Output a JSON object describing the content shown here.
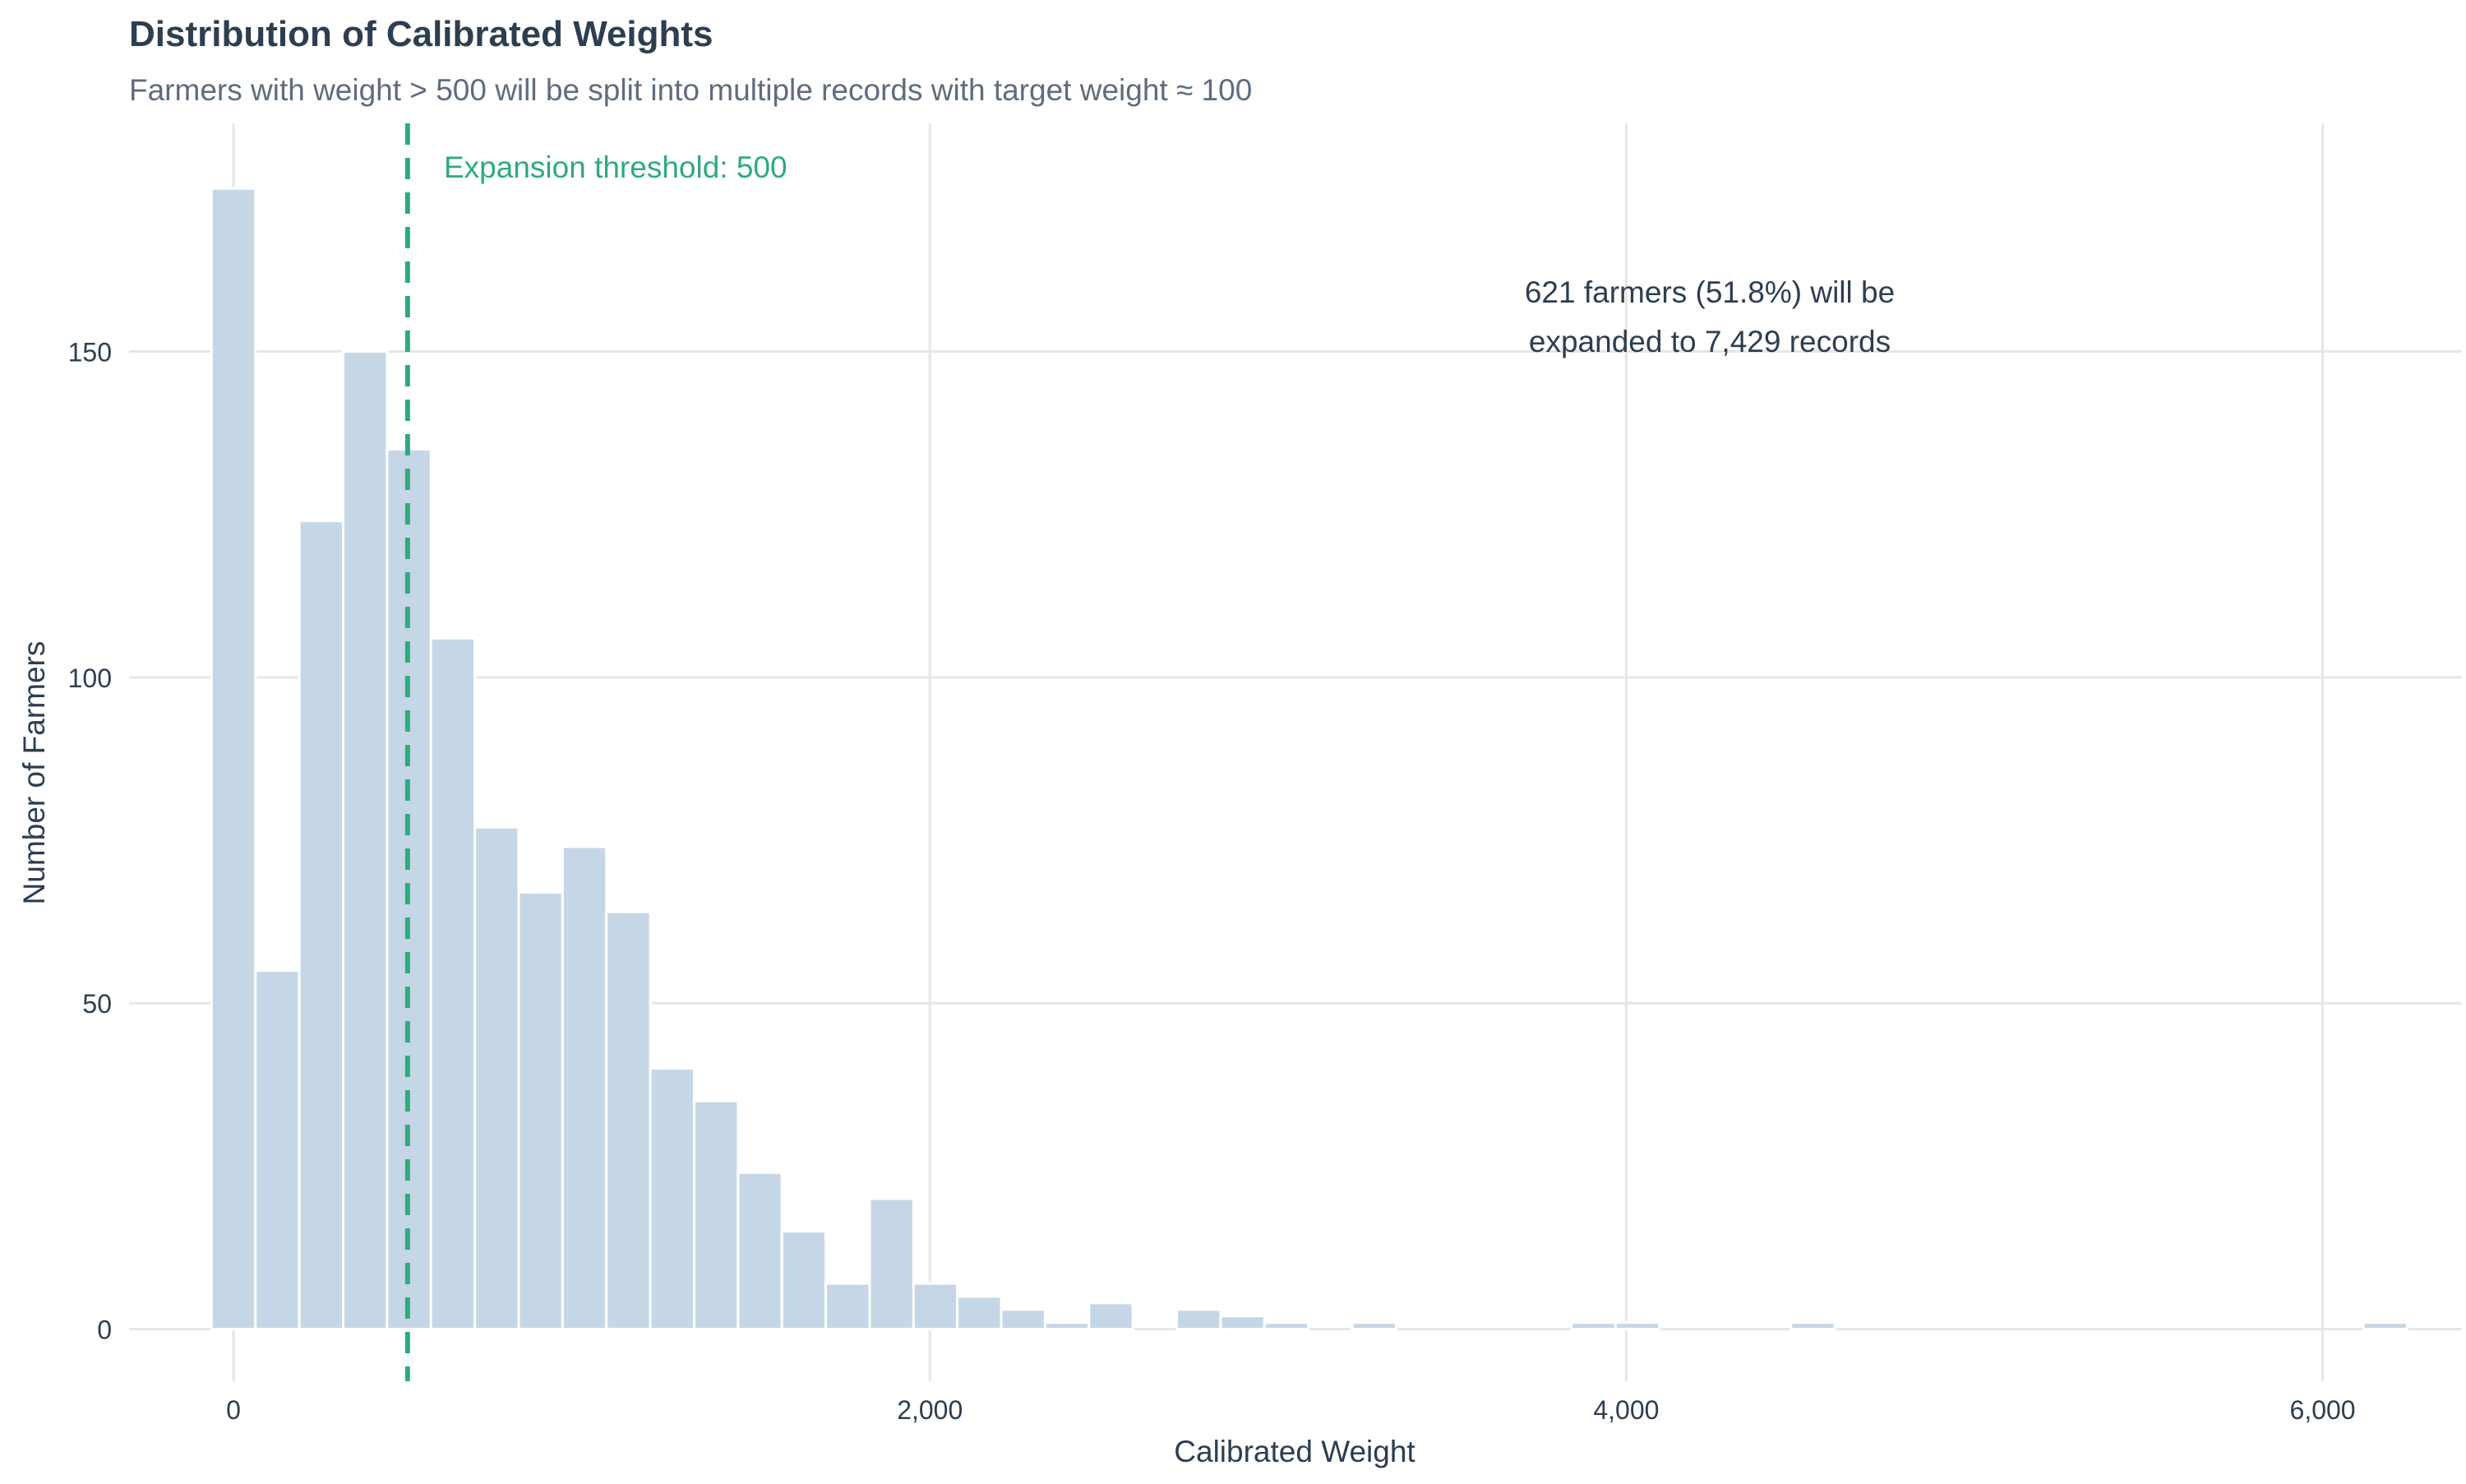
{
  "chart_data": {
    "type": "bar",
    "title": "Distribution of Calibrated Weights",
    "subtitle": "Farmers with weight > 500 will be split into multiple records with target weight ≈ 100",
    "xlabel": "Calibrated Weight",
    "ylabel": "Number of Farmers",
    "xlim": [
      -300,
      6400
    ],
    "ylim": [
      -8,
      185
    ],
    "x_ticks": [
      0,
      2000,
      4000,
      6000
    ],
    "x_tick_labels": [
      "0",
      "2,000",
      "4,000",
      "6,000"
    ],
    "y_ticks": [
      0,
      50,
      100,
      150
    ],
    "y_tick_labels": [
      "0",
      "50",
      "100",
      "150"
    ],
    "grid": true,
    "bin_width": 126,
    "bins": [
      {
        "x0": -63,
        "x1": 63,
        "count": 175
      },
      {
        "x0": 63,
        "x1": 189,
        "count": 55
      },
      {
        "x0": 189,
        "x1": 315,
        "count": 124
      },
      {
        "x0": 315,
        "x1": 441,
        "count": 150
      },
      {
        "x0": 441,
        "x1": 567,
        "count": 135
      },
      {
        "x0": 567,
        "x1": 693,
        "count": 106
      },
      {
        "x0": 693,
        "x1": 819,
        "count": 77
      },
      {
        "x0": 819,
        "x1": 945,
        "count": 67
      },
      {
        "x0": 945,
        "x1": 1071,
        "count": 74
      },
      {
        "x0": 1071,
        "x1": 1197,
        "count": 64
      },
      {
        "x0": 1197,
        "x1": 1323,
        "count": 40
      },
      {
        "x0": 1323,
        "x1": 1449,
        "count": 35
      },
      {
        "x0": 1449,
        "x1": 1575,
        "count": 24
      },
      {
        "x0": 1575,
        "x1": 1701,
        "count": 15
      },
      {
        "x0": 1701,
        "x1": 1827,
        "count": 7
      },
      {
        "x0": 1827,
        "x1": 1953,
        "count": 20
      },
      {
        "x0": 1953,
        "x1": 2079,
        "count": 7
      },
      {
        "x0": 2079,
        "x1": 2205,
        "count": 5
      },
      {
        "x0": 2205,
        "x1": 2331,
        "count": 3
      },
      {
        "x0": 2331,
        "x1": 2457,
        "count": 1
      },
      {
        "x0": 2457,
        "x1": 2583,
        "count": 4
      },
      {
        "x0": 2709,
        "x1": 2835,
        "count": 3
      },
      {
        "x0": 2835,
        "x1": 2961,
        "count": 2
      },
      {
        "x0": 2961,
        "x1": 3087,
        "count": 1
      },
      {
        "x0": 3213,
        "x1": 3339,
        "count": 1
      },
      {
        "x0": 3843,
        "x1": 3969,
        "count": 1
      },
      {
        "x0": 3969,
        "x1": 4095,
        "count": 1
      },
      {
        "x0": 4473,
        "x1": 4599,
        "count": 1
      },
      {
        "x0": 6117,
        "x1": 6243,
        "count": 1
      }
    ],
    "threshold": {
      "value": 500,
      "label": "Expansion threshold: 500",
      "color": "#2eaa7f"
    },
    "annotation": {
      "lines": [
        "621 farmers (51.8%) will be",
        "expanded to 7,429 records"
      ]
    },
    "colors": {
      "bar_fill": "#c5d7e6",
      "bar_stroke": "#ffffff",
      "grid": "#e6e6e6",
      "title": "#2c3e50",
      "subtitle": "#5d6d7e",
      "axis_text": "#2c3e50"
    }
  }
}
